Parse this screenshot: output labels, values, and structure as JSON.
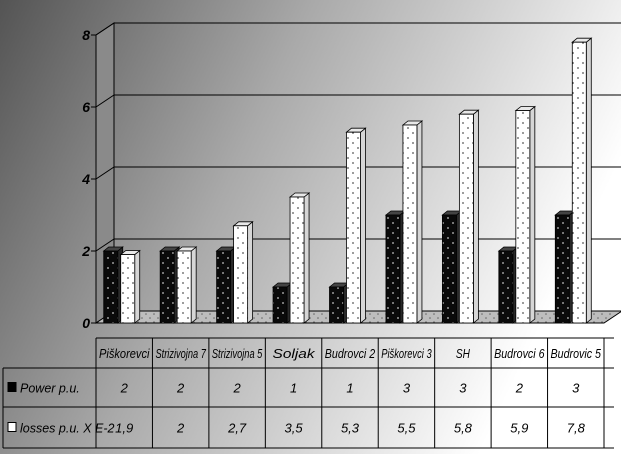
{
  "chart_data": {
    "type": "bar",
    "categories": [
      "Piškorevci",
      "Strizivojna 7",
      "Strizivojna 5",
      "Soljak",
      "Budrovci 2",
      "Piškorevci 3",
      "SH",
      "Budrovci 6",
      "Budrovic 5"
    ],
    "series": [
      {
        "name": "Power p.u.",
        "values": [
          2,
          2,
          2,
          1,
          1,
          3,
          3,
          2,
          3
        ],
        "labels": [
          "2",
          "2",
          "2",
          "1",
          "1",
          "3",
          "3",
          "2",
          "3"
        ],
        "color": "#000000"
      },
      {
        "name": "losses p.u. X E-2",
        "values": [
          1.9,
          2,
          2.7,
          3.5,
          5.3,
          5.5,
          5.8,
          5.9,
          7.8
        ],
        "labels": [
          "1,9",
          "2",
          "2,7",
          "3,5",
          "5,3",
          "5,5",
          "5,8",
          "5,9",
          "7,8"
        ],
        "color": "#ffffff"
      }
    ],
    "ylim": [
      0,
      8
    ],
    "yticks": [
      "0",
      "2",
      "4",
      "6",
      "8"
    ],
    "grid": true,
    "legend": "data-table-left",
    "colors": {
      "background_dark": "#555555",
      "background_light": "#ffffff"
    }
  }
}
